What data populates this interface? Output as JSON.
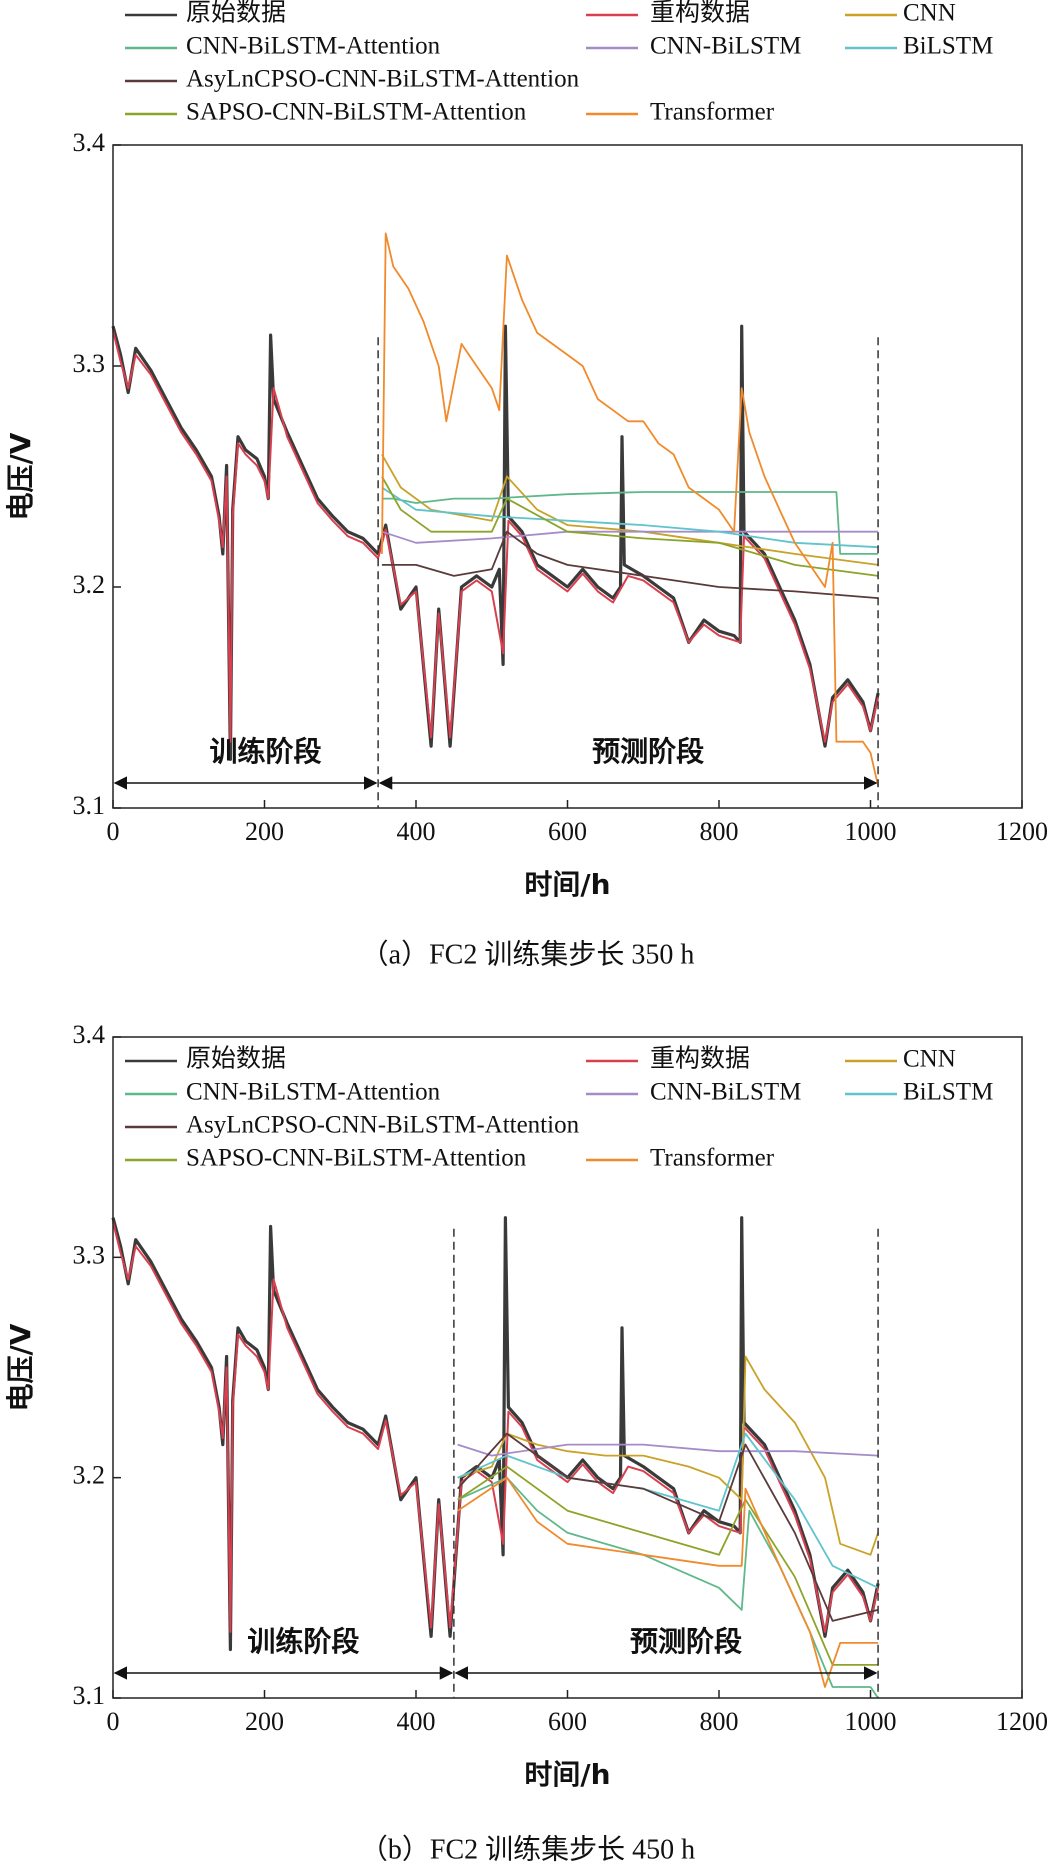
{
  "chart_data": [
    {
      "type": "line",
      "caption": "（a）FC2 训练集步长 350 h",
      "x_label": "时间/h",
      "y_label": "电压/V",
      "xlim": [
        0,
        1200
      ],
      "xticks": [
        0,
        200,
        400,
        600,
        800,
        1000,
        1200
      ],
      "ylim": [
        3.1,
        3.4
      ],
      "yticks": [
        3.1,
        3.2,
        3.3,
        3.4
      ],
      "vlines": [
        350,
        1010
      ],
      "annotations": [
        "训练阶段",
        "预测阶段"
      ],
      "series": [
        {
          "name": "原始数据",
          "color": "#3a3a3a",
          "x": [
            0,
            10,
            20,
            30,
            50,
            70,
            90,
            110,
            130,
            140,
            145,
            150,
            155,
            158,
            165,
            175,
            190,
            200,
            205,
            208,
            212,
            230,
            250,
            270,
            290,
            310,
            330,
            350,
            360,
            380,
            400,
            420,
            430,
            445,
            460,
            480,
            500,
            510,
            515,
            518,
            522,
            540,
            560,
            580,
            600,
            620,
            640,
            660,
            670,
            672,
            675,
            700,
            720,
            740,
            760,
            780,
            800,
            820,
            828,
            830,
            833,
            860,
            880,
            900,
            920,
            940,
            950,
            970,
            990,
            1000,
            1010
          ],
          "values": [
            3.318,
            3.305,
            3.288,
            3.308,
            3.298,
            3.285,
            3.272,
            3.262,
            3.25,
            3.232,
            3.215,
            3.255,
            3.122,
            3.235,
            3.268,
            3.262,
            3.258,
            3.25,
            3.24,
            3.314,
            3.285,
            3.27,
            3.255,
            3.24,
            3.232,
            3.225,
            3.222,
            3.215,
            3.228,
            3.19,
            3.2,
            3.128,
            3.19,
            3.128,
            3.2,
            3.205,
            3.2,
            3.208,
            3.165,
            3.318,
            3.232,
            3.225,
            3.21,
            3.205,
            3.2,
            3.208,
            3.2,
            3.195,
            3.2,
            3.268,
            3.21,
            3.205,
            3.2,
            3.195,
            3.175,
            3.185,
            3.18,
            3.178,
            3.175,
            3.318,
            3.225,
            3.215,
            3.2,
            3.185,
            3.165,
            3.128,
            3.15,
            3.158,
            3.148,
            3.135,
            3.152
          ]
        },
        {
          "name": "重构数据",
          "color": "#d9404f",
          "x": [
            0,
            10,
            20,
            30,
            50,
            70,
            90,
            110,
            130,
            140,
            145,
            150,
            155,
            158,
            165,
            175,
            190,
            200,
            205,
            212,
            230,
            250,
            270,
            290,
            310,
            330,
            350,
            360,
            380,
            400,
            420,
            430,
            445,
            460,
            480,
            500,
            515,
            522,
            540,
            560,
            580,
            600,
            620,
            640,
            660,
            680,
            700,
            720,
            740,
            760,
            780,
            800,
            828,
            833,
            860,
            880,
            900,
            920,
            940,
            950,
            970,
            990,
            1000,
            1010
          ],
          "values": [
            3.316,
            3.302,
            3.29,
            3.305,
            3.296,
            3.283,
            3.27,
            3.26,
            3.248,
            3.23,
            3.218,
            3.25,
            3.13,
            3.232,
            3.265,
            3.26,
            3.255,
            3.248,
            3.24,
            3.29,
            3.268,
            3.253,
            3.238,
            3.23,
            3.223,
            3.22,
            3.213,
            3.226,
            3.192,
            3.198,
            3.132,
            3.188,
            3.132,
            3.198,
            3.203,
            3.198,
            3.17,
            3.23,
            3.223,
            3.208,
            3.203,
            3.198,
            3.206,
            3.198,
            3.193,
            3.205,
            3.203,
            3.198,
            3.193,
            3.175,
            3.183,
            3.178,
            3.175,
            3.223,
            3.213,
            3.198,
            3.183,
            3.163,
            3.13,
            3.148,
            3.156,
            3.146,
            3.135,
            3.15
          ]
        },
        {
          "name": "CNN",
          "color": "#c9a227",
          "x": [
            355,
            380,
            420,
            500,
            520,
            560,
            600,
            700,
            800,
            900,
            1010
          ],
          "values": [
            3.26,
            3.245,
            3.235,
            3.23,
            3.25,
            3.235,
            3.228,
            3.225,
            3.22,
            3.215,
            3.21
          ]
        },
        {
          "name": "CNN-BiLSTM-Attention",
          "color": "#5fb88a",
          "x": [
            355,
            370,
            400,
            450,
            500,
            600,
            700,
            800,
            900,
            955,
            960,
            1010
          ],
          "values": [
            3.24,
            3.24,
            3.238,
            3.24,
            3.24,
            3.242,
            3.243,
            3.243,
            3.243,
            3.243,
            3.215,
            3.215
          ]
        },
        {
          "name": "CNN-BiLSTM",
          "color": "#a58cc8",
          "x": [
            355,
            400,
            500,
            600,
            700,
            800,
            900,
            1010
          ],
          "values": [
            3.225,
            3.22,
            3.222,
            3.225,
            3.225,
            3.225,
            3.225,
            3.225
          ]
        },
        {
          "name": "BiLSTM",
          "color": "#5fc4cc",
          "x": [
            355,
            400,
            500,
            600,
            700,
            800,
            900,
            1010
          ],
          "values": [
            3.245,
            3.235,
            3.232,
            3.23,
            3.228,
            3.225,
            3.22,
            3.218
          ]
        },
        {
          "name": "AsyLnCPSO-CNN-BiLSTM-Attention",
          "color": "#5a3a3a",
          "x": [
            355,
            400,
            450,
            500,
            520,
            560,
            600,
            700,
            800,
            900,
            1010
          ],
          "values": [
            3.21,
            3.21,
            3.205,
            3.208,
            3.225,
            3.215,
            3.21,
            3.205,
            3.2,
            3.198,
            3.195
          ]
        },
        {
          "name": "SAPSO-CNN-BiLSTM-Attention",
          "color": "#8ca42a",
          "x": [
            355,
            380,
            420,
            500,
            520,
            600,
            700,
            800,
            900,
            1010
          ],
          "values": [
            3.25,
            3.235,
            3.225,
            3.225,
            3.24,
            3.225,
            3.222,
            3.22,
            3.21,
            3.205
          ]
        },
        {
          "name": "Transformer",
          "color": "#f08a2c",
          "x": [
            355,
            360,
            370,
            390,
            410,
            430,
            440,
            460,
            480,
            500,
            510,
            520,
            540,
            560,
            580,
            600,
            620,
            640,
            660,
            680,
            700,
            720,
            740,
            760,
            780,
            800,
            820,
            830,
            840,
            860,
            880,
            900,
            920,
            940,
            950,
            955,
            970,
            990,
            1000,
            1010
          ],
          "values": [
            3.215,
            3.36,
            3.345,
            3.335,
            3.32,
            3.3,
            3.275,
            3.31,
            3.3,
            3.29,
            3.28,
            3.35,
            3.33,
            3.315,
            3.31,
            3.305,
            3.3,
            3.285,
            3.28,
            3.275,
            3.275,
            3.265,
            3.26,
            3.245,
            3.24,
            3.235,
            3.225,
            3.29,
            3.27,
            3.25,
            3.235,
            3.22,
            3.21,
            3.2,
            3.22,
            3.13,
            3.13,
            3.13,
            3.125,
            3.11
          ]
        }
      ]
    },
    {
      "type": "line",
      "caption": "（b）FC2 训练集步长 450 h",
      "x_label": "时间/h",
      "y_label": "电压/V",
      "xlim": [
        0,
        1200
      ],
      "xticks": [
        0,
        200,
        400,
        600,
        800,
        1000,
        1200
      ],
      "ylim": [
        3.1,
        3.4
      ],
      "yticks": [
        3.1,
        3.2,
        3.3,
        3.4
      ],
      "vlines": [
        450,
        1010
      ],
      "annotations": [
        "训练阶段",
        "预测阶段"
      ],
      "series": [
        {
          "name": "原始数据",
          "color": "#3a3a3a",
          "x": [
            0,
            10,
            20,
            30,
            50,
            70,
            90,
            110,
            130,
            140,
            145,
            150,
            155,
            158,
            165,
            175,
            190,
            200,
            205,
            208,
            212,
            230,
            250,
            270,
            290,
            310,
            330,
            350,
            360,
            380,
            400,
            420,
            430,
            445,
            460,
            480,
            500,
            510,
            515,
            518,
            522,
            540,
            560,
            580,
            600,
            620,
            640,
            660,
            670,
            672,
            675,
            700,
            720,
            740,
            760,
            780,
            800,
            820,
            828,
            830,
            833,
            860,
            880,
            900,
            920,
            940,
            950,
            970,
            990,
            1000,
            1010
          ],
          "values": [
            3.318,
            3.305,
            3.288,
            3.308,
            3.298,
            3.285,
            3.272,
            3.262,
            3.25,
            3.232,
            3.215,
            3.255,
            3.122,
            3.235,
            3.268,
            3.262,
            3.258,
            3.25,
            3.24,
            3.314,
            3.285,
            3.27,
            3.255,
            3.24,
            3.232,
            3.225,
            3.222,
            3.215,
            3.228,
            3.19,
            3.2,
            3.128,
            3.19,
            3.128,
            3.2,
            3.205,
            3.2,
            3.208,
            3.165,
            3.318,
            3.232,
            3.225,
            3.21,
            3.205,
            3.2,
            3.208,
            3.2,
            3.195,
            3.2,
            3.268,
            3.21,
            3.205,
            3.2,
            3.195,
            3.175,
            3.185,
            3.18,
            3.178,
            3.175,
            3.318,
            3.225,
            3.215,
            3.2,
            3.185,
            3.165,
            3.128,
            3.15,
            3.158,
            3.148,
            3.135,
            3.152
          ]
        },
        {
          "name": "重构数据",
          "color": "#d9404f",
          "x": [
            0,
            10,
            20,
            30,
            50,
            70,
            90,
            110,
            130,
            140,
            145,
            150,
            155,
            158,
            165,
            175,
            190,
            200,
            205,
            212,
            230,
            250,
            270,
            290,
            310,
            330,
            350,
            360,
            380,
            400,
            420,
            430,
            445,
            460,
            480,
            500,
            515,
            522,
            540,
            560,
            580,
            600,
            620,
            640,
            660,
            680,
            700,
            720,
            740,
            760,
            780,
            800,
            828,
            833,
            860,
            880,
            900,
            920,
            940,
            950,
            970,
            990,
            1000,
            1010
          ],
          "values": [
            3.316,
            3.302,
            3.29,
            3.305,
            3.296,
            3.283,
            3.27,
            3.26,
            3.248,
            3.23,
            3.218,
            3.25,
            3.13,
            3.232,
            3.265,
            3.26,
            3.255,
            3.248,
            3.24,
            3.29,
            3.268,
            3.253,
            3.238,
            3.23,
            3.223,
            3.22,
            3.213,
            3.226,
            3.192,
            3.198,
            3.132,
            3.188,
            3.132,
            3.198,
            3.203,
            3.198,
            3.17,
            3.23,
            3.223,
            3.208,
            3.203,
            3.198,
            3.206,
            3.198,
            3.193,
            3.205,
            3.203,
            3.198,
            3.193,
            3.175,
            3.183,
            3.178,
            3.175,
            3.223,
            3.213,
            3.198,
            3.183,
            3.163,
            3.13,
            3.148,
            3.156,
            3.146,
            3.135,
            3.15
          ]
        },
        {
          "name": "CNN",
          "color": "#c9a227",
          "x": [
            455,
            500,
            520,
            560,
            600,
            650,
            700,
            760,
            800,
            830,
            835,
            860,
            900,
            940,
            960,
            1000,
            1010
          ],
          "values": [
            3.2,
            3.205,
            3.22,
            3.215,
            3.212,
            3.21,
            3.21,
            3.205,
            3.2,
            3.19,
            3.255,
            3.24,
            3.225,
            3.2,
            3.17,
            3.165,
            3.175
          ]
        },
        {
          "name": "CNN-BiLSTM-Attention",
          "color": "#5fb88a",
          "x": [
            455,
            520,
            560,
            600,
            700,
            800,
            830,
            840,
            880,
            920,
            950,
            1000,
            1010
          ],
          "values": [
            3.19,
            3.2,
            3.185,
            3.175,
            3.165,
            3.15,
            3.14,
            3.185,
            3.16,
            3.13,
            3.105,
            3.105,
            3.1
          ]
        },
        {
          "name": "CNN-BiLSTM",
          "color": "#a58cc8",
          "x": [
            455,
            500,
            600,
            700,
            800,
            900,
            1010
          ],
          "values": [
            3.215,
            3.21,
            3.215,
            3.215,
            3.212,
            3.212,
            3.21
          ]
        },
        {
          "name": "BiLSTM",
          "color": "#5fc4cc",
          "x": [
            455,
            520,
            600,
            700,
            800,
            835,
            900,
            950,
            1010
          ],
          "values": [
            3.2,
            3.21,
            3.2,
            3.195,
            3.185,
            3.22,
            3.19,
            3.16,
            3.15
          ]
        },
        {
          "name": "AsyLnCPSO-CNN-BiLSTM-Attention",
          "color": "#5a3a3a",
          "x": [
            455,
            520,
            600,
            700,
            800,
            835,
            900,
            950,
            1010
          ],
          "values": [
            3.195,
            3.22,
            3.2,
            3.195,
            3.18,
            3.215,
            3.175,
            3.135,
            3.14
          ]
        },
        {
          "name": "SAPSO-CNN-BiLSTM-Attention",
          "color": "#8ca42a",
          "x": [
            455,
            520,
            600,
            700,
            800,
            835,
            900,
            950,
            1010
          ],
          "values": [
            3.19,
            3.205,
            3.185,
            3.175,
            3.165,
            3.19,
            3.155,
            3.115,
            3.115
          ]
        },
        {
          "name": "Transformer",
          "color": "#f08a2c",
          "x": [
            455,
            520,
            560,
            600,
            700,
            800,
            830,
            835,
            880,
            920,
            940,
            960,
            1010
          ],
          "values": [
            3.185,
            3.2,
            3.18,
            3.17,
            3.165,
            3.16,
            3.16,
            3.195,
            3.16,
            3.13,
            3.105,
            3.125,
            3.125
          ]
        }
      ]
    }
  ]
}
